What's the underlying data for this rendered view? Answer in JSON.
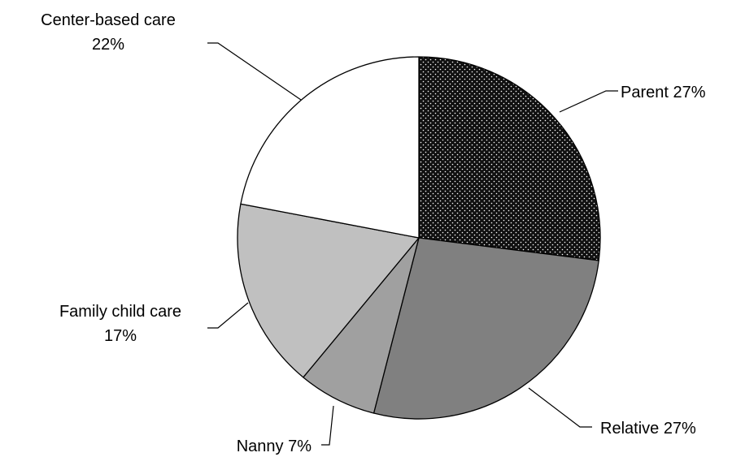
{
  "chart_data": {
    "type": "pie",
    "title": "",
    "direction": "clockwise from top",
    "slices": [
      {
        "label": "Parent",
        "value": 27,
        "color": "#111111",
        "pattern": "dotted",
        "label_line1": "Parent 27%",
        "label_line2": ""
      },
      {
        "label": "Relative",
        "value": 27,
        "color": "#808080",
        "label_line1": "Relative 27%",
        "label_line2": ""
      },
      {
        "label": "Nanny",
        "value": 7,
        "color": "#a0a0a0",
        "label_line1": "Nanny 7%",
        "label_line2": ""
      },
      {
        "label": "Family child care",
        "value": 17,
        "color": "#c0c0c0",
        "label_line1": "Family child care",
        "label_line2": "17%"
      },
      {
        "label": "Center-based care",
        "value": 22,
        "color": "#ffffff",
        "label_line1": "Center-based care",
        "label_line2": "22%"
      }
    ]
  }
}
